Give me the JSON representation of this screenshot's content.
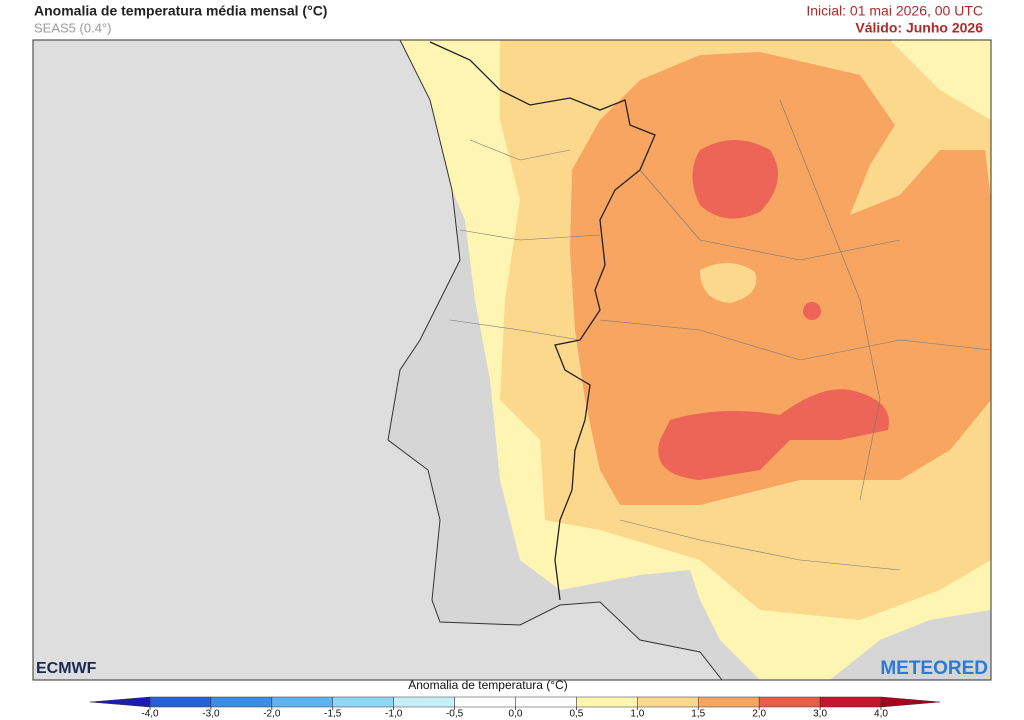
{
  "header": {
    "title": "Anomalia de temperatura média mensal (°C)",
    "subtitle": "SEAS5 (0.4°)",
    "initial": "Inicial: 01 mai 2026, 00 UTC",
    "valid": "Válido: Junho 2026"
  },
  "logos": {
    "left": "ECMWF",
    "right": "METEORED"
  },
  "colorbar": {
    "title": "Anomalia de temperatura (°C)",
    "ticks": [
      {
        "value": -4,
        "label": "-4,0"
      },
      {
        "value": -3,
        "label": "-3,0"
      },
      {
        "value": -2,
        "label": "-2,0"
      },
      {
        "value": -1.5,
        "label": "-1,5"
      },
      {
        "value": -1,
        "label": "-1,0"
      },
      {
        "value": -0.5,
        "label": "-0,5"
      },
      {
        "value": 0,
        "label": "0,0"
      },
      {
        "value": 0.5,
        "label": "0,5"
      },
      {
        "value": 1,
        "label": "1,0"
      },
      {
        "value": 1.5,
        "label": "1,5"
      },
      {
        "value": 2,
        "label": "2,0"
      },
      {
        "value": 3,
        "label": "3,0"
      },
      {
        "value": 4,
        "label": "4,0"
      }
    ],
    "colors": [
      "#2a5fdc",
      "#3c8de6",
      "#5cb5ef",
      "#92d6f5",
      "#c6eff9",
      "#ffffff",
      "#ffffff",
      "#fff5b2",
      "#fbd88c",
      "#f7a560",
      "#ec5c4c",
      "#c8142c"
    ],
    "extend_colors": [
      "#1c1cb4",
      "#a8001a"
    ]
  }
}
